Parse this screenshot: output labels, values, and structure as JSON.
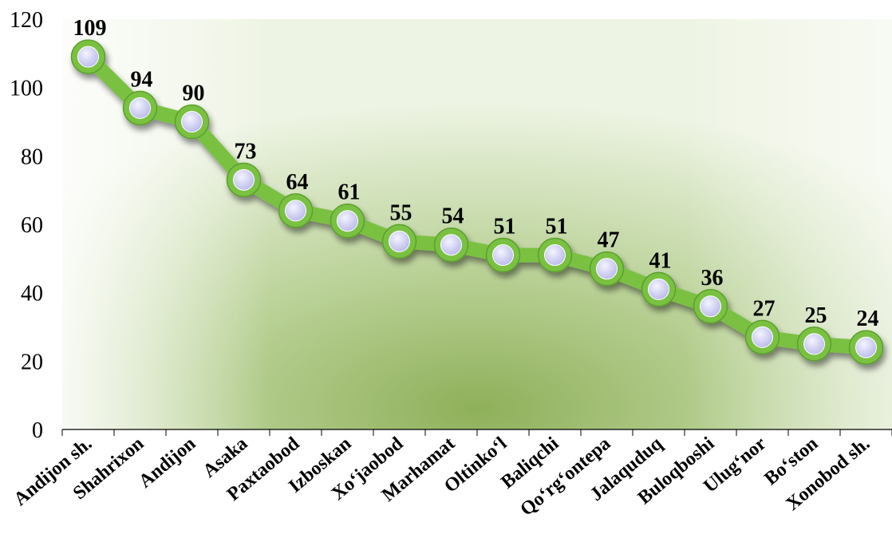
{
  "chart_data": {
    "type": "line",
    "title": "",
    "xlabel": "",
    "ylabel": "",
    "categories": [
      "Andijon sh.",
      "Shahrixon",
      "Andijon",
      "Asaka",
      "Paxtaobod",
      "Izboskan",
      "Xo‘jaobod",
      "Marhamat",
      "Oltinko‘l",
      "Baliqchi",
      "Qo‘rg‘ontepa",
      "Jalaquduq",
      "Buloqboshi",
      "Ulug‘nor",
      "Bo‘ston",
      "Xonobod sh."
    ],
    "values": [
      109,
      94,
      90,
      73,
      64,
      61,
      55,
      54,
      51,
      51,
      47,
      41,
      36,
      27,
      25,
      24
    ],
    "data_labels": [
      "109",
      "94",
      "90",
      "73",
      "64",
      "61",
      "55",
      "54",
      "51",
      "51",
      "47",
      "41",
      "36",
      "27",
      "25",
      "24"
    ],
    "ylim": [
      0,
      120
    ],
    "yticks": [
      "0",
      "20",
      "40",
      "60",
      "80",
      "100",
      "120"
    ],
    "grid": false,
    "legend": "none",
    "colors": {
      "line": "#7ac143",
      "line_dark": "#5aa02c",
      "marker_fill": "#dcdcf8",
      "background": "#9cbd6e"
    }
  }
}
